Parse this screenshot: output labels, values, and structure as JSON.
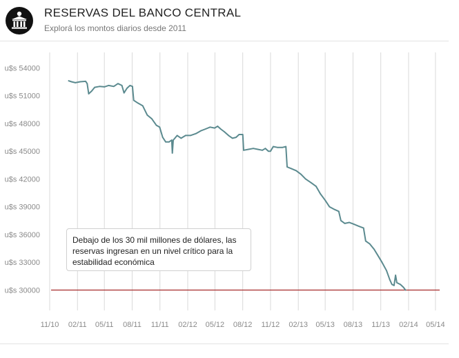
{
  "header": {
    "title": "RESERVAS DEL BANCO CENTRAL",
    "subtitle": "Explorá los montos diarios desde 2011",
    "logo_icon": "bank-building-icon",
    "logo_color": "#111111"
  },
  "annotation": {
    "text": "Debajo de los 30 mil millones de dólares, las reservas ingresan en un nivel crítico para la estabilidad económica"
  },
  "chart_data": {
    "type": "line",
    "title": "RESERVAS DEL BANCO CENTRAL",
    "subtitle": "Explorá los montos diarios desde 2011",
    "xlabel": "",
    "ylabel": "",
    "y_prefix": "u$s ",
    "ylim": [
      27800,
      55000
    ],
    "xlim": [
      "2010-11-01",
      "2014-05-15"
    ],
    "y_ticks": [
      30000,
      33000,
      36000,
      39000,
      42000,
      45000,
      48000,
      51000,
      54000
    ],
    "x_ticks": [
      {
        "label": "11/10",
        "date": "2010-11-01"
      },
      {
        "label": "02/11",
        "date": "2011-02-01"
      },
      {
        "label": "05/11",
        "date": "2011-05-01"
      },
      {
        "label": "08/11",
        "date": "2011-08-01"
      },
      {
        "label": "11/11",
        "date": "2011-11-01"
      },
      {
        "label": "02/12",
        "date": "2012-02-01"
      },
      {
        "label": "05/12",
        "date": "2012-05-01"
      },
      {
        "label": "08/12",
        "date": "2012-08-01"
      },
      {
        "label": "11/12",
        "date": "2012-11-01"
      },
      {
        "label": "02/13",
        "date": "2013-02-01"
      },
      {
        "label": "05/13",
        "date": "2013-05-01"
      },
      {
        "label": "08/13",
        "date": "2013-08-01"
      },
      {
        "label": "11/13",
        "date": "2013-11-01"
      },
      {
        "label": "02/14",
        "date": "2014-02-01"
      },
      {
        "label": "05/14",
        "date": "2014-05-01"
      }
    ],
    "grid": "vertical",
    "line_color": "#5b8a8f",
    "threshold": {
      "value": 30000,
      "color": "#a52a2a"
    },
    "series": [
      {
        "points": [
          [
            "2011-01-03",
            52600
          ],
          [
            "2011-01-12",
            52500
          ],
          [
            "2011-01-25",
            52400
          ],
          [
            "2011-02-10",
            52500
          ],
          [
            "2011-02-28",
            52550
          ],
          [
            "2011-03-05",
            52300
          ],
          [
            "2011-03-10",
            51200
          ],
          [
            "2011-03-20",
            51500
          ],
          [
            "2011-03-30",
            51900
          ],
          [
            "2011-04-15",
            52000
          ],
          [
            "2011-05-01",
            51950
          ],
          [
            "2011-05-15",
            52100
          ],
          [
            "2011-06-01",
            52000
          ],
          [
            "2011-06-15",
            52300
          ],
          [
            "2011-06-28",
            52100
          ],
          [
            "2011-07-05",
            51300
          ],
          [
            "2011-07-15",
            51800
          ],
          [
            "2011-07-25",
            52100
          ],
          [
            "2011-08-02",
            52000
          ],
          [
            "2011-08-06",
            50500
          ],
          [
            "2011-08-20",
            50200
          ],
          [
            "2011-09-05",
            49900
          ],
          [
            "2011-09-20",
            48900
          ],
          [
            "2011-10-05",
            48500
          ],
          [
            "2011-10-20",
            47800
          ],
          [
            "2011-10-31",
            47600
          ],
          [
            "2011-11-10",
            46500
          ],
          [
            "2011-11-20",
            46000
          ],
          [
            "2011-12-01",
            46000
          ],
          [
            "2011-12-10",
            46200
          ],
          [
            "2011-12-12",
            44800
          ],
          [
            "2011-12-15",
            46200
          ],
          [
            "2011-12-28",
            46700
          ],
          [
            "2012-01-10",
            46400
          ],
          [
            "2012-01-25",
            46700
          ],
          [
            "2012-02-10",
            46700
          ],
          [
            "2012-02-28",
            46900
          ],
          [
            "2012-03-15",
            47200
          ],
          [
            "2012-03-31",
            47400
          ],
          [
            "2012-04-15",
            47600
          ],
          [
            "2012-04-30",
            47500
          ],
          [
            "2012-05-10",
            47700
          ],
          [
            "2012-05-20",
            47400
          ],
          [
            "2012-06-01",
            47100
          ],
          [
            "2012-06-15",
            46700
          ],
          [
            "2012-06-28",
            46400
          ],
          [
            "2012-07-10",
            46500
          ],
          [
            "2012-07-20",
            46800
          ],
          [
            "2012-08-01",
            46800
          ],
          [
            "2012-08-04",
            45100
          ],
          [
            "2012-08-20",
            45200
          ],
          [
            "2012-09-05",
            45300
          ],
          [
            "2012-09-20",
            45200
          ],
          [
            "2012-10-05",
            45100
          ],
          [
            "2012-10-15",
            45300
          ],
          [
            "2012-10-25",
            45000
          ],
          [
            "2012-11-01",
            45000
          ],
          [
            "2012-11-10",
            45500
          ],
          [
            "2012-11-25",
            45400
          ],
          [
            "2012-12-10",
            45400
          ],
          [
            "2012-12-22",
            45500
          ],
          [
            "2012-12-26",
            43300
          ],
          [
            "2013-01-10",
            43100
          ],
          [
            "2013-01-25",
            42900
          ],
          [
            "2013-02-10",
            42500
          ],
          [
            "2013-02-25",
            42000
          ],
          [
            "2013-03-15",
            41600
          ],
          [
            "2013-04-01",
            41200
          ],
          [
            "2013-04-15",
            40400
          ],
          [
            "2013-05-01",
            39700
          ],
          [
            "2013-05-15",
            39000
          ],
          [
            "2013-06-01",
            38700
          ],
          [
            "2013-06-15",
            38500
          ],
          [
            "2013-06-22",
            37500
          ],
          [
            "2013-07-05",
            37200
          ],
          [
            "2013-07-20",
            37300
          ],
          [
            "2013-08-05",
            37100
          ],
          [
            "2013-08-20",
            36900
          ],
          [
            "2013-09-05",
            36700
          ],
          [
            "2013-09-12",
            35300
          ],
          [
            "2013-09-25",
            35000
          ],
          [
            "2013-10-10",
            34400
          ],
          [
            "2013-10-25",
            33600
          ],
          [
            "2013-11-05",
            33000
          ],
          [
            "2013-11-20",
            32100
          ],
          [
            "2013-12-01",
            31100
          ],
          [
            "2013-12-08",
            30600
          ],
          [
            "2013-12-15",
            30500
          ],
          [
            "2013-12-20",
            31600
          ],
          [
            "2013-12-24",
            30800
          ],
          [
            "2014-01-05",
            30600
          ],
          [
            "2014-01-15",
            30300
          ],
          [
            "2014-01-22",
            30000
          ]
        ]
      }
    ]
  }
}
